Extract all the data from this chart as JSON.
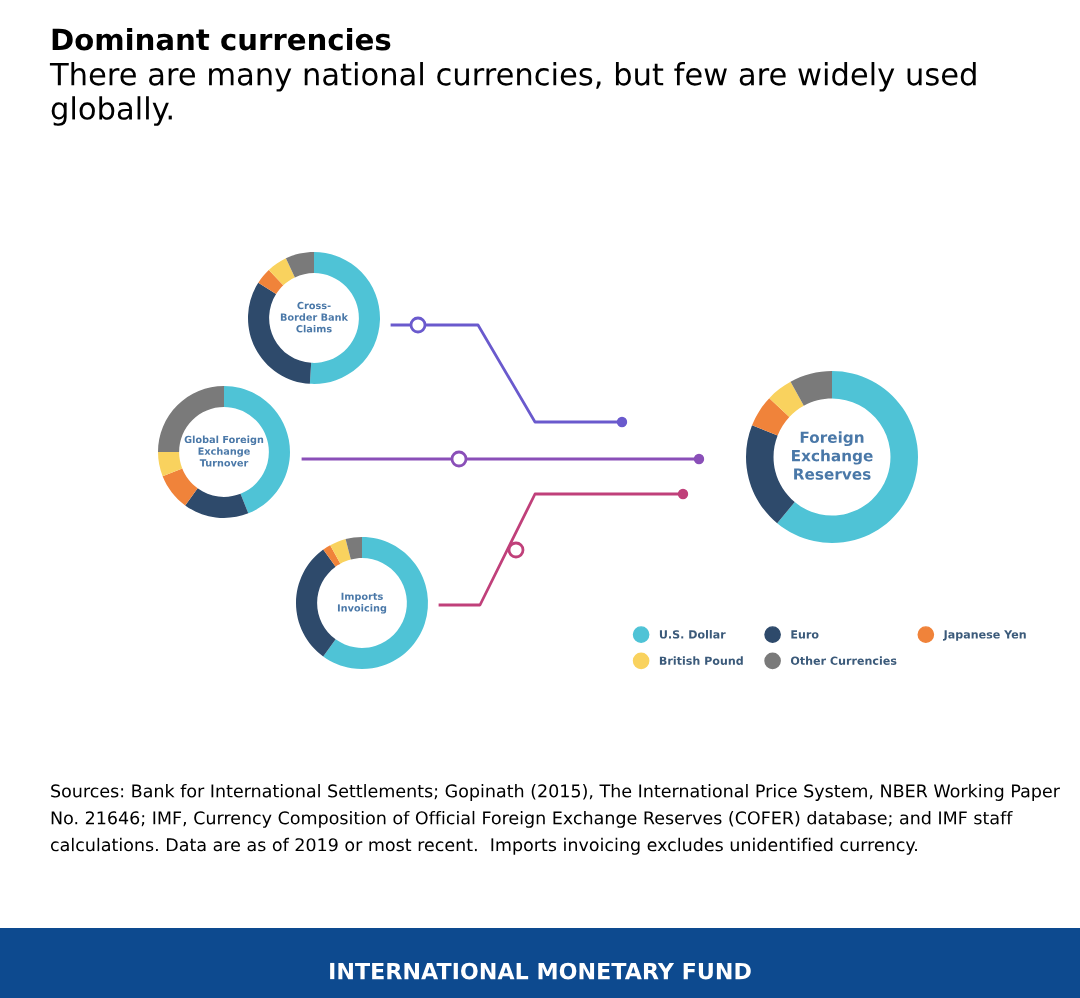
{
  "chart_data": [
    {
      "type": "other",
      "title": "Dominant currencies",
      "subtitle": "There are many national currencies, but few are widely used globally.",
      "annotations": [
        "Sources: Bank for International Settlements; Gopinath (2015), The International Price System, NBER Working Paper No. 21646; IMF, Currency Composition of Official Foreign Exchange Reserves (COFER) database; and IMF staff calculations. Data are as of 2019 or most recent.  Imports invoicing excludes unidentified currency.",
        "INTERNATIONAL MONETARY FUND"
      ]
    },
    {
      "type": "donut",
      "title": "Cross-\nBorder Bank\nClaims",
      "categories": [
        "U.S. Dollar",
        "Euro",
        "Japanese Yen",
        "British Pound",
        "Other Currencies"
      ],
      "values": [
        51,
        33,
        4,
        5,
        7
      ],
      "colors": [
        "#4fc3d6",
        "#2e4a6b",
        "#f0833a",
        "#f9d25e",
        "#7a7a7a"
      ],
      "legend": "bottom right"
    },
    {
      "type": "donut",
      "title": "Global Foreign\nExchange\nTurnover",
      "categories": [
        null,
        null,
        null,
        null,
        null
      ],
      "values": [
        44,
        16,
        9,
        6,
        25
      ],
      "colors": [
        "#4fc3d6",
        "#2e4a6b",
        "#f0833a",
        "#f9d25e",
        "#7a7a7a"
      ]
    },
    {
      "type": "donut",
      "title": "Foreign\nExchange\nReserves",
      "categories": [
        null,
        null,
        null,
        null,
        null
      ],
      "values": [
        61,
        20,
        6,
        5,
        8
      ],
      "colors": [
        "#4fc3d6",
        "#2e4a6b",
        "#f0833a",
        "#f9d25e",
        "#7a7a7a"
      ]
    },
    {
      "type": "donut",
      "title": "Imports\nInvoicing",
      "categories": [
        null,
        null,
        null,
        null,
        null
      ],
      "values": [
        60,
        30,
        2,
        4,
        4
      ],
      "colors": [
        "#4fc3d6",
        "#2e4a6b",
        "#f0833a",
        "#f9d25e",
        "#7a7a7a"
      ]
    }
  ]
}
